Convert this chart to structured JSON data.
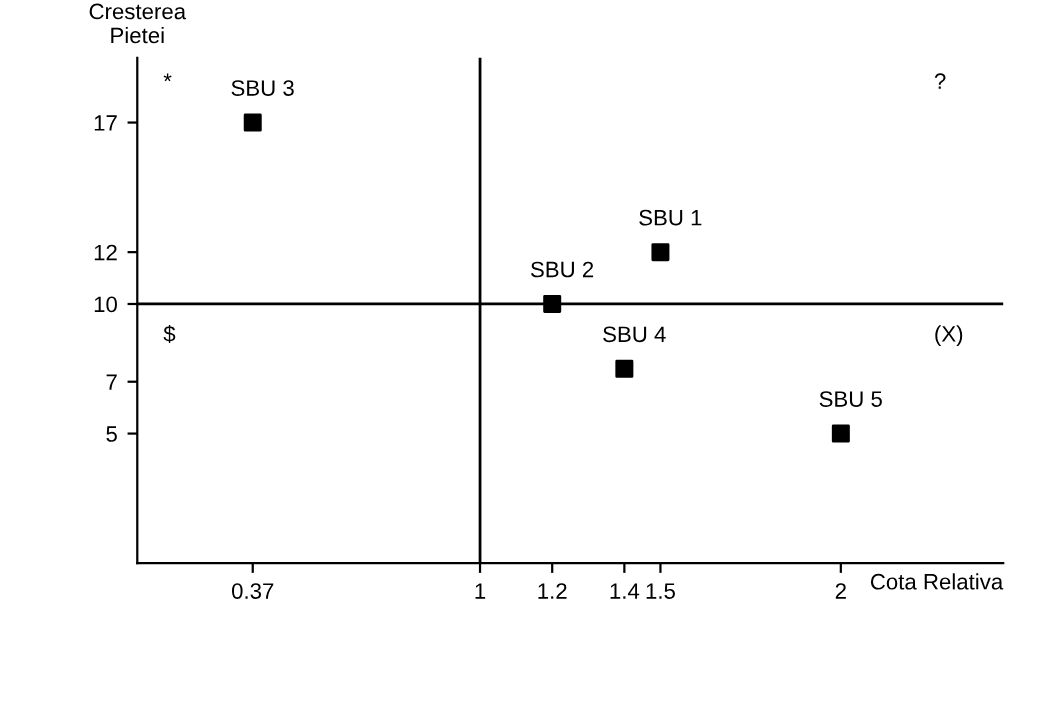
{
  "chart_data": {
    "type": "scatter",
    "xlabel": "Cota Relativa",
    "ylabel": "Cresterea\nPietei",
    "x": [
      1.5,
      1.2,
      0.37,
      1.4,
      2
    ],
    "series": [
      {
        "color": "#000000",
        "values": [
          12,
          10,
          17,
          7.5,
          5
        ]
      }
    ],
    "marker": "square",
    "grid": false,
    "xlim": [
      0.05,
      2.45
    ],
    "ylim": [
      0,
      19.5
    ],
    "xticks": [
      0.37,
      1,
      1.2,
      1.4,
      1.5,
      2
    ],
    "yticks": [
      5,
      7,
      10,
      12,
      17
    ],
    "ref_lines": [
      {
        "axis": "x",
        "value": 1,
        "color": "#000000"
      },
      {
        "axis": "y",
        "value": 10,
        "color": "#000000"
      }
    ],
    "annotations": [
      {
        "text": "SBU 1",
        "x": 1.5,
        "y": 12
      },
      {
        "text": "SBU 2",
        "x": 1.2,
        "y": 10
      },
      {
        "text": "SBU 3",
        "x": 0.37,
        "y": 17
      },
      {
        "text": "SBU 4",
        "x": 1.4,
        "y": 7.5
      },
      {
        "text": "SBU 5",
        "x": 2,
        "y": 5
      },
      "*",
      "?",
      "$",
      "(X)"
    ]
  }
}
